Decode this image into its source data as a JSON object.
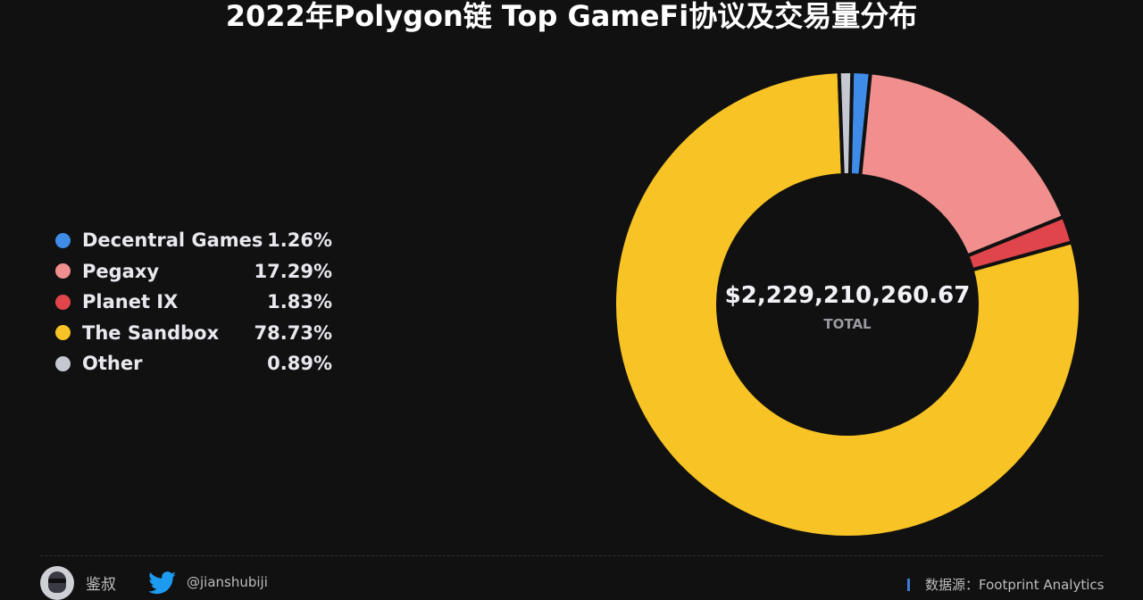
{
  "chart_data": {
    "type": "pie",
    "title": "2022年Polygon链 Top GameFi协议及交易量分布",
    "donut": true,
    "categories": [
      "Decentral Games",
      "Pegaxy",
      "Planet IX",
      "The Sandbox",
      "Other"
    ],
    "values": [
      1.26,
      17.29,
      1.83,
      78.73,
      0.89
    ],
    "labels": [
      "1.26%",
      "17.29%",
      "1.83%",
      "78.73%",
      "0.89%"
    ],
    "colors": [
      "#3f8ce8",
      "#f08f8e",
      "#e0454b",
      "#f7c325",
      "#c5c8d0"
    ],
    "center_value": "$2,229,210,260.67",
    "center_label": "TOTAL",
    "legend_position": "left"
  },
  "footer": {
    "author": "鉴叔",
    "handle": "@jianshubiji",
    "source": "数据源：Footprint Analytics"
  },
  "icons": {
    "twitter": "twitter-bird-icon",
    "avatar": "author-avatar"
  }
}
